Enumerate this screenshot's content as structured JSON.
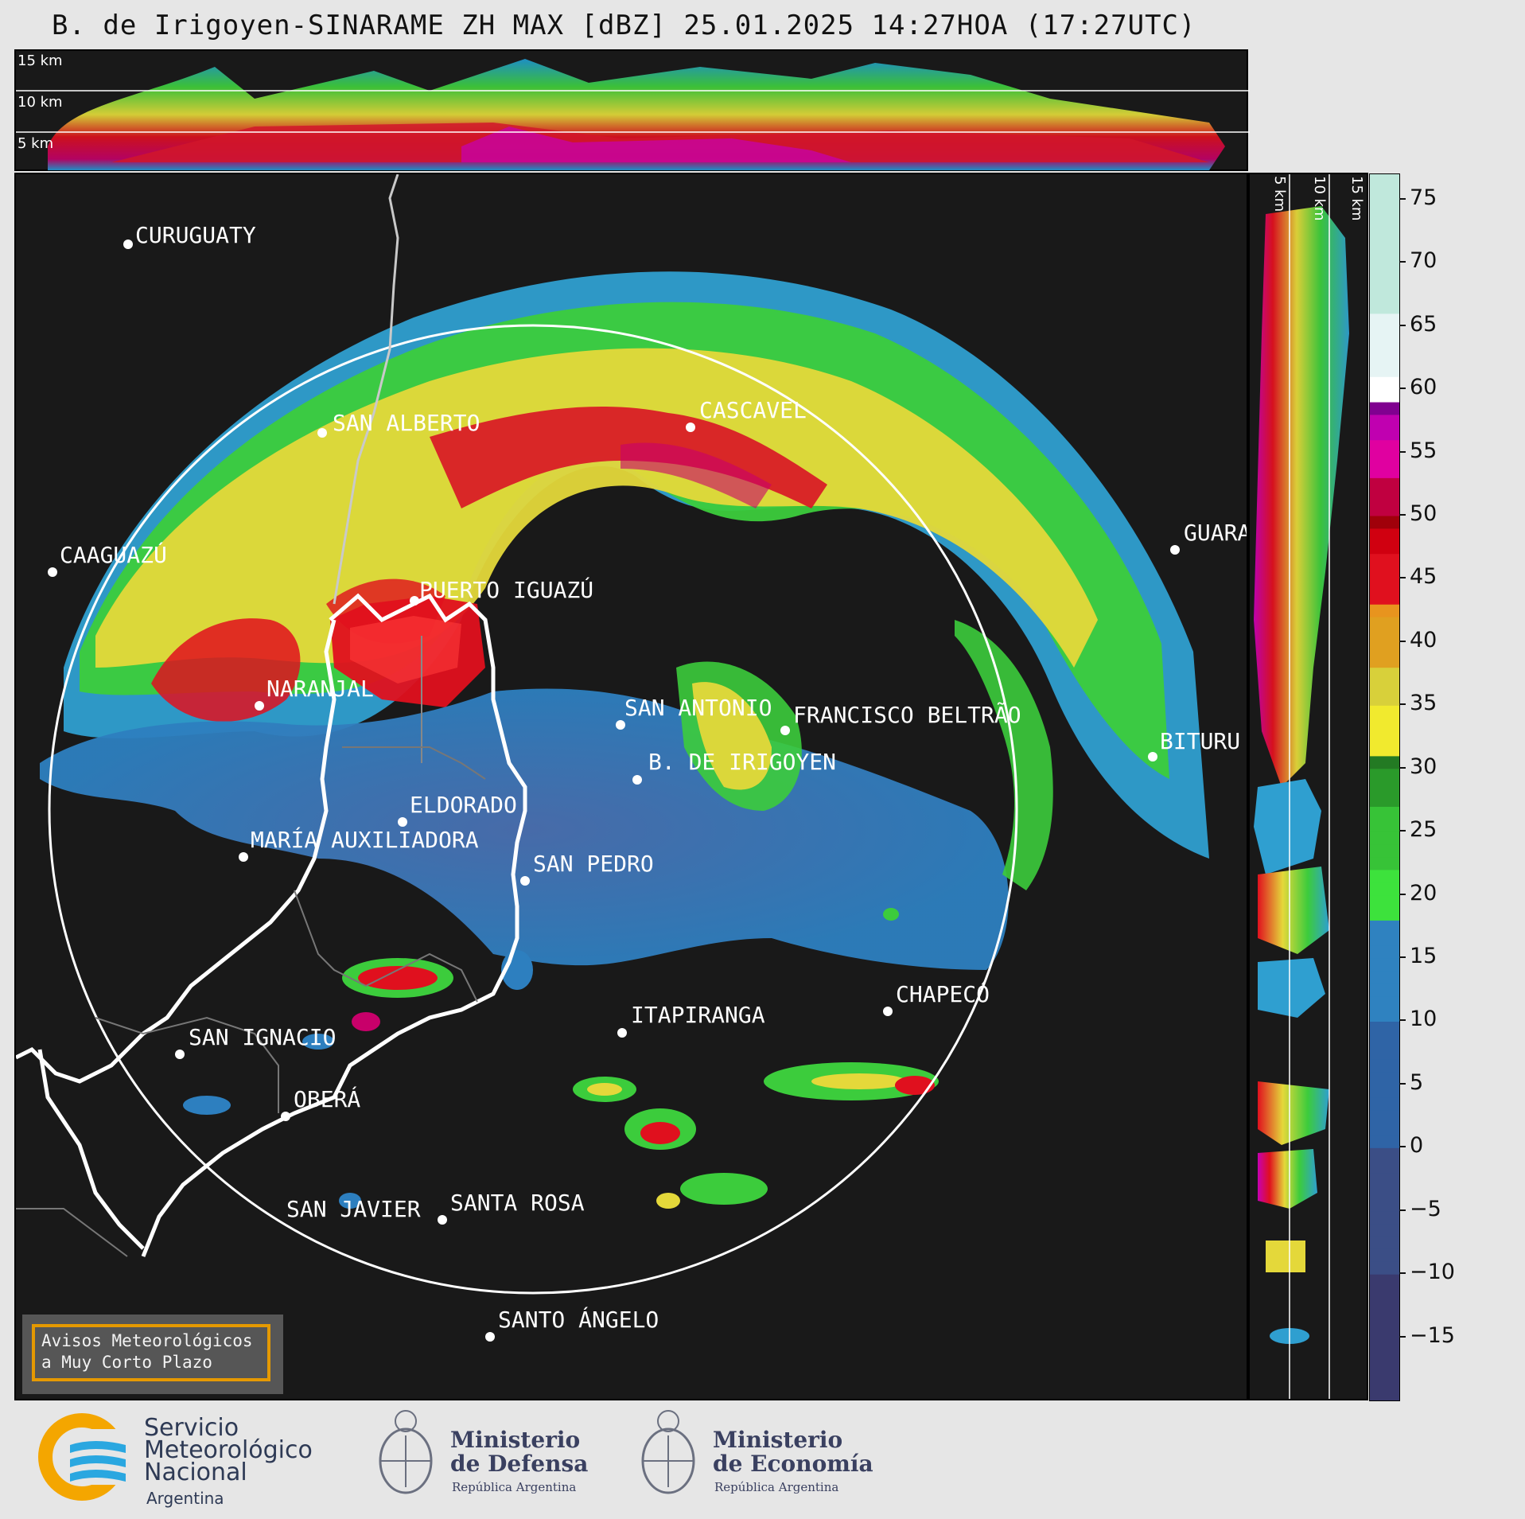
{
  "title": "B. de Irigoyen-SINARAME ZH MAX [dBZ] 25.01.2025 14:27HOA (17:27UTC)",
  "top_strip": {
    "km_labels": [
      "15 km",
      "10 km",
      "5 km"
    ]
  },
  "right_strip": {
    "km_labels": [
      "5 km",
      "10 km",
      "15 km"
    ]
  },
  "colorbar": {
    "unit": "dBZ",
    "ticks": [
      "75",
      "70",
      "65",
      "60",
      "55",
      "50",
      "45",
      "40",
      "35",
      "30",
      "25",
      "20",
      "15",
      "10",
      "5",
      "0",
      "−5",
      "−10",
      "−15"
    ],
    "tick_values": [
      75,
      70,
      65,
      60,
      55,
      50,
      45,
      40,
      35,
      30,
      25,
      20,
      15,
      10,
      5,
      0,
      -5,
      -10,
      -15
    ],
    "range": [
      -20,
      77
    ]
  },
  "cities": [
    {
      "name": "CURUGUATY"
    },
    {
      "name": "SAN ALBERTO"
    },
    {
      "name": "CAAGUAZÚ"
    },
    {
      "name": "PUERTO IGUAZÚ"
    },
    {
      "name": "CASCAVEL"
    },
    {
      "name": "GUARA"
    },
    {
      "name": "NARANJAL"
    },
    {
      "name": "SAN ANTONIO"
    },
    {
      "name": "FRANCISCO BELTRÃO"
    },
    {
      "name": "B. DE IRIGOYEN"
    },
    {
      "name": "BITURU"
    },
    {
      "name": "ELDORADO"
    },
    {
      "name": "MARÍA AUXILIADORA"
    },
    {
      "name": "SAN PEDRO"
    },
    {
      "name": "ITAPIRANGA"
    },
    {
      "name": "CHAPECÓ"
    },
    {
      "name": "SAN IGNACIO"
    },
    {
      "name": "OBERÁ"
    },
    {
      "name": "SAN JAVIER"
    },
    {
      "name": "SANTA ROSA"
    },
    {
      "name": "SANTO ÁNGELO"
    }
  ],
  "warning": {
    "line1": "Avisos Meteorológicos",
    "line2": "a Muy Corto Plazo"
  },
  "logos": {
    "smn": {
      "line1": "Servicio",
      "line2": "Meteorológico",
      "line3": "Nacional",
      "line4": "Argentina"
    },
    "defensa": {
      "line1": "Ministerio",
      "line2": "de Defensa",
      "sub": "República Argentina"
    },
    "economia": {
      "line1": "Ministerio",
      "line2": "de Economía",
      "sub": "República Argentina"
    }
  },
  "colors": {
    "background": "#e6e6e6",
    "map_bg": "#191919",
    "accent_warning": "#f0a000"
  }
}
